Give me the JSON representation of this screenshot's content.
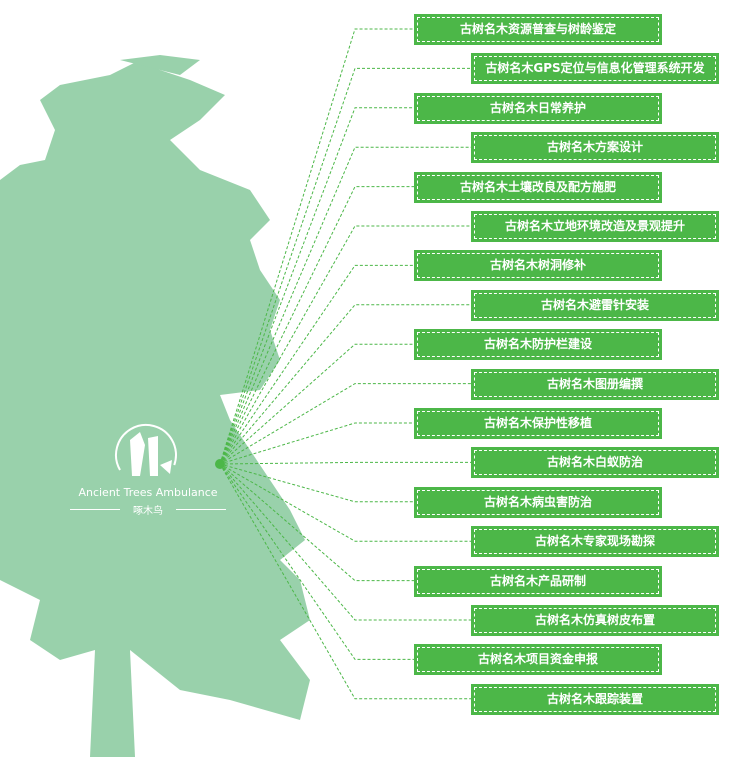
{
  "logo": {
    "name_en": "Ancient Trees Ambulance",
    "name_cn": "啄木鸟"
  },
  "colors": {
    "tree": "#99d1ab",
    "accent": "#4cb748"
  },
  "services": [
    "古树名木资源普查与树龄鉴定",
    "古树名木GPS定位与信息化管理系统开发",
    "古树名木日常养护",
    "古树名木方案设计",
    "古树名木土壤改良及配方施肥",
    "古树名木立地环境改造及景观提升",
    "古树名木树洞修补",
    "古树名木避雷针安装",
    "古树名木防护栏建设",
    "古树名木图册编撰",
    "古树名木保护性移植",
    "古树名木白蚁防治",
    "古树名木病虫害防治",
    "古树名木专家现场勘探",
    "古树名木产品研制",
    "古树名木仿真树皮布置",
    "古树名木项目资金申报",
    "古树名木跟踪装置"
  ]
}
